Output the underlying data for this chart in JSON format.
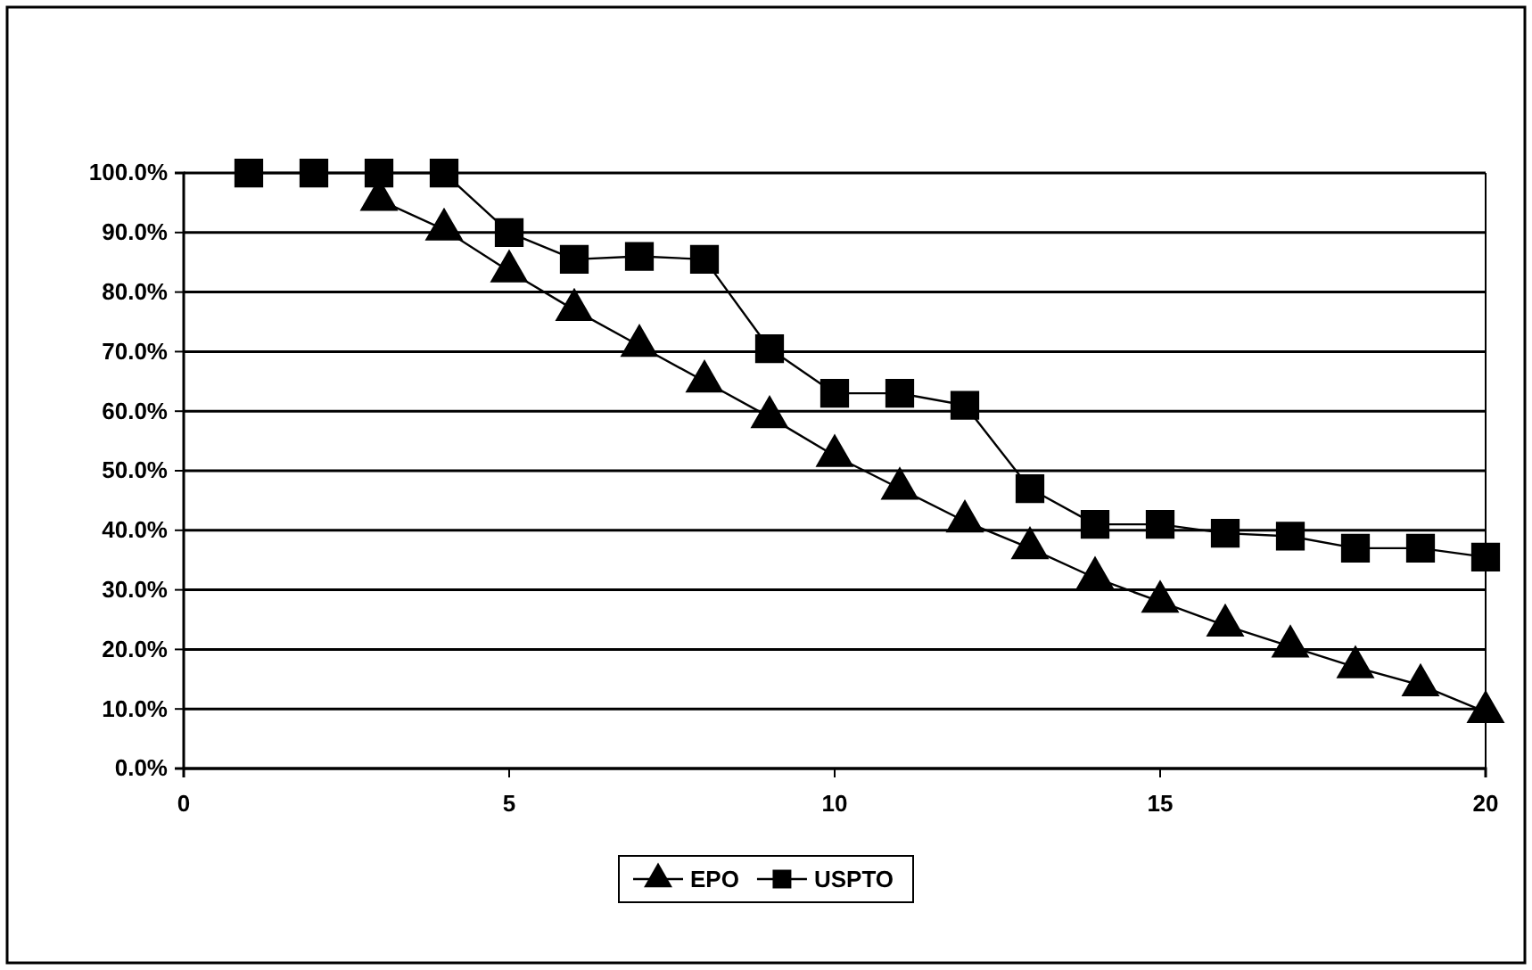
{
  "chart_data": {
    "type": "line",
    "x": [
      1,
      2,
      3,
      4,
      5,
      6,
      7,
      8,
      9,
      10,
      11,
      12,
      13,
      14,
      15,
      16,
      17,
      18,
      19,
      20
    ],
    "series": [
      {
        "name": "EPO",
        "color": "#000000",
        "marker": "triangle",
        "values": [
          null,
          null,
          95.5,
          90.5,
          83.5,
          77,
          71,
          65,
          59,
          52.5,
          47,
          41.5,
          37,
          32,
          28,
          24,
          20.5,
          17,
          14,
          9.5
        ]
      },
      {
        "name": "USPTO",
        "color": "#000000",
        "marker": "square",
        "values": [
          100,
          100,
          100,
          100,
          90,
          85.5,
          86,
          85.5,
          70.5,
          63,
          63,
          61,
          47,
          41,
          41,
          39.5,
          39,
          37,
          37,
          35.5
        ]
      }
    ],
    "xlim": [
      0,
      20
    ],
    "xticks": [
      0,
      5,
      10,
      15,
      20
    ],
    "ylim": [
      0,
      100
    ],
    "yticks": [
      {
        "value": 0,
        "label": "0.0%"
      },
      {
        "value": 10,
        "label": "10.0%"
      },
      {
        "value": 20,
        "label": "20.0%"
      },
      {
        "value": 30,
        "label": "30.0%"
      },
      {
        "value": 40,
        "label": "40.0%"
      },
      {
        "value": 50,
        "label": "50.0%"
      },
      {
        "value": 60,
        "label": "60.0%"
      },
      {
        "value": 70,
        "label": "70.0%"
      },
      {
        "value": 80,
        "label": "80.0%"
      },
      {
        "value": 90,
        "label": "90.0%"
      },
      {
        "value": 100,
        "label": "100.0%"
      }
    ],
    "grid": "y",
    "legend": "bottom",
    "line_style": "solid"
  }
}
